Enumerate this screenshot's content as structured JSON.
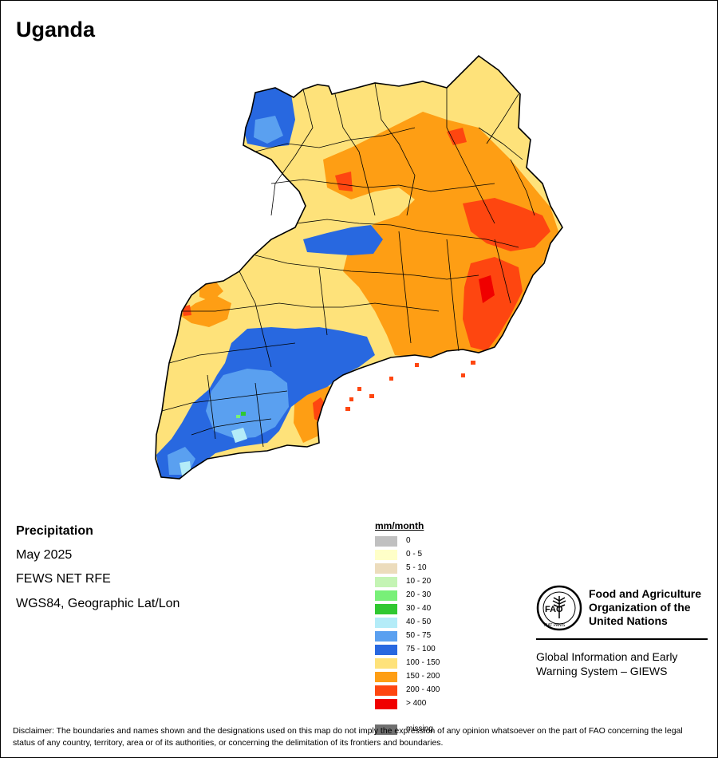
{
  "map": {
    "title": "Uganda",
    "info": {
      "variable": "Precipitation",
      "period": "May 2025",
      "source": "FEWS NET RFE",
      "projection": "WGS84, Geographic Lat/Lon"
    },
    "legend": {
      "unit": "mm/month",
      "items": [
        {
          "label": "0",
          "color": "#c0c0c0"
        },
        {
          "label": "0 - 5",
          "color": "#ffffc8"
        },
        {
          "label": "5 - 10",
          "color": "#ecdcbc"
        },
        {
          "label": "10 - 20",
          "color": "#c4f4b4"
        },
        {
          "label": "20 - 30",
          "color": "#78f078"
        },
        {
          "label": "30 - 40",
          "color": "#30c830"
        },
        {
          "label": "40 - 50",
          "color": "#b4ecf8"
        },
        {
          "label": "50 - 75",
          "color": "#5aa0f0"
        },
        {
          "label": "75 - 100",
          "color": "#2868e0"
        },
        {
          "label": "100 - 150",
          "color": "#fee27a"
        },
        {
          "label": "150 - 200",
          "color": "#fe9e14"
        },
        {
          "label": "200 - 400",
          "color": "#fe4610"
        },
        {
          "label": "> 400",
          "color": "#f00000"
        },
        {
          "label": "missing",
          "color": "#707070"
        }
      ]
    }
  },
  "org": {
    "logo_text": "FAO",
    "logo_motto": "FIAT PANIS",
    "name_lines": [
      "Food and Agriculture",
      "Organization of the",
      "United Nations"
    ],
    "program_lines": [
      "Global Information and Early",
      "Warning System – GIEWS"
    ]
  },
  "disclaimer": "Disclaimer: The boundaries and names shown and the designations used on this map do not imply the expression of any opinion whatsoever on the part of FAO concerning the legal status of any country, territory, area or of its authorities, or concerning the delimitation of its frontiers and boundaries."
}
